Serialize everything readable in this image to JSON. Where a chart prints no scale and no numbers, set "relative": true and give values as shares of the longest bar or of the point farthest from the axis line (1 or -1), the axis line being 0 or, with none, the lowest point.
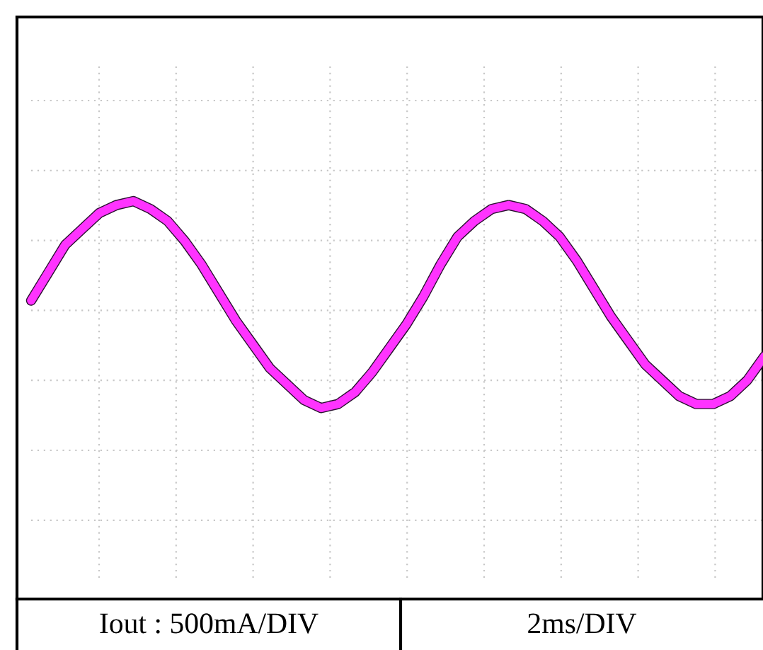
{
  "chart_data": {
    "type": "line",
    "relative": true,
    "grid": true,
    "categories": [
      null,
      null,
      null,
      null,
      null,
      null,
      null,
      null,
      null,
      null,
      null,
      null,
      null,
      null,
      null,
      null,
      null,
      null,
      null,
      null,
      null,
      null,
      null,
      null,
      null,
      null,
      null,
      null,
      null,
      null,
      null,
      null,
      null,
      null,
      null,
      null,
      null,
      null,
      null,
      null,
      null,
      null,
      null,
      null
    ],
    "series": [
      {
        "color": "#ff33ff",
        "values": [
          0.75,
          0.82,
          0.89,
          0.93,
          0.97,
          0.99,
          1.0,
          0.98,
          0.95,
          0.9,
          0.84,
          0.77,
          0.7,
          0.64,
          0.58,
          0.54,
          0.5,
          0.48,
          0.49,
          0.52,
          0.57,
          0.63,
          0.69,
          0.76,
          0.84,
          0.91,
          0.95,
          0.98,
          0.99,
          0.98,
          0.95,
          0.91,
          0.85,
          0.78,
          0.71,
          0.65,
          0.59,
          0.55,
          0.51,
          0.49,
          0.49,
          0.51,
          0.55,
          0.61
        ]
      }
    ],
    "annotations": [
      "Iout : 500mA/DIV",
      "2ms/DIV"
    ]
  }
}
